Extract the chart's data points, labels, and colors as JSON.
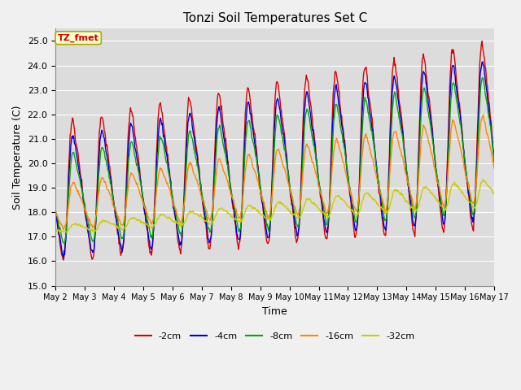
{
  "title": "Tonzi Soil Temperatures Set C",
  "xlabel": "Time",
  "ylabel": "Soil Temperature (C)",
  "ylim": [
    15.0,
    25.5
  ],
  "yticks": [
    15.0,
    16.0,
    17.0,
    18.0,
    19.0,
    20.0,
    21.0,
    22.0,
    23.0,
    24.0,
    25.0
  ],
  "colors": {
    "-2cm": "#dd0000",
    "-4cm": "#0000dd",
    "-8cm": "#00aa00",
    "-16cm": "#ff8800",
    "-32cm": "#cccc00"
  },
  "annotation_label": "TZ_fmet",
  "annotation_bg": "#ffffcc",
  "annotation_border": "#aaaa00",
  "fig_bg": "#f0f0f0",
  "plot_bg": "#dcdcdc",
  "num_days": 15,
  "start_day": 2,
  "points_per_day": 48,
  "legend_entries": [
    "-2cm",
    "-4cm",
    "-8cm",
    "-16cm",
    "-32cm"
  ]
}
